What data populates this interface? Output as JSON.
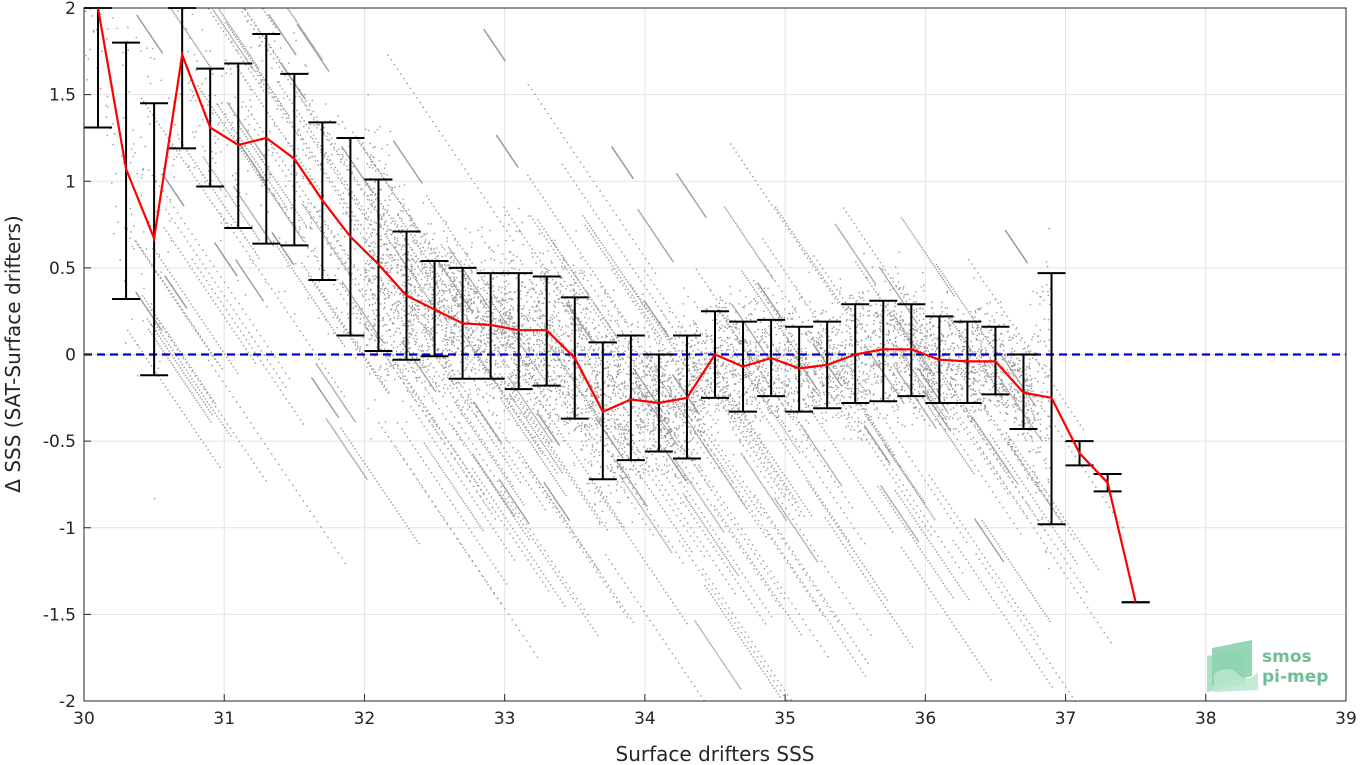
{
  "chart_data": {
    "type": "scatter",
    "title": "",
    "xlabel": "Surface drifters SSS",
    "ylabel": "Δ SSS (SAT-Surface drifters)",
    "xlim": [
      30,
      39
    ],
    "ylim": [
      -2,
      2
    ],
    "x_ticks": [
      30,
      31,
      32,
      33,
      34,
      35,
      36,
      37,
      38,
      39
    ],
    "y_ticks": [
      -2,
      -1.5,
      -1,
      -0.5,
      0,
      0.5,
      1,
      1.5,
      2
    ],
    "x_tick_labels": [
      "30",
      "31",
      "32",
      "33",
      "34",
      "35",
      "36",
      "37",
      "38",
      "39"
    ],
    "y_tick_labels": [
      "-2",
      "-1.5",
      "-1",
      "-0.5",
      "0",
      "0.5",
      "1",
      "1.5",
      "2"
    ],
    "grid": true,
    "colors": {
      "scatter": "#999999",
      "mean_line": "#ff0000",
      "error_bars": "#000000",
      "zero_line": "#0000cc"
    },
    "zero_reference": 0,
    "binned_stats": {
      "x": [
        30.1,
        30.3,
        30.5,
        30.7,
        30.9,
        31.1,
        31.3,
        31.5,
        31.7,
        31.9,
        32.1,
        32.3,
        32.5,
        32.7,
        32.9,
        33.1,
        33.3,
        33.5,
        33.7,
        33.9,
        34.1,
        34.3,
        34.5,
        34.7,
        34.9,
        35.1,
        35.3,
        35.5,
        35.7,
        35.9,
        36.1,
        36.3,
        36.5,
        36.7,
        36.9,
        37.1,
        37.3,
        37.5
      ],
      "mean": [
        2.02,
        1.07,
        0.67,
        1.73,
        1.31,
        1.21,
        1.25,
        1.13,
        0.89,
        0.68,
        0.52,
        0.34,
        0.26,
        0.18,
        0.17,
        0.14,
        0.14,
        -0.02,
        -0.33,
        -0.26,
        -0.28,
        -0.25,
        0.0,
        -0.07,
        -0.02,
        -0.08,
        -0.06,
        0.0,
        0.03,
        0.03,
        -0.03,
        -0.04,
        -0.04,
        -0.22,
        -0.25,
        -0.57,
        -0.74,
        -1.43
      ],
      "upper": [
        2.02,
        1.8,
        1.45,
        2.02,
        1.65,
        1.68,
        1.85,
        1.62,
        1.34,
        1.25,
        1.01,
        0.71,
        0.54,
        0.5,
        0.47,
        0.47,
        0.45,
        0.33,
        0.07,
        0.11,
        0.0,
        0.11,
        0.25,
        0.19,
        0.2,
        0.16,
        0.19,
        0.29,
        0.31,
        0.29,
        0.22,
        0.19,
        0.16,
        0.0,
        0.47,
        -0.5,
        -0.69,
        -1.43
      ],
      "lower": [
        1.31,
        0.32,
        -0.12,
        1.19,
        0.97,
        0.73,
        0.64,
        0.63,
        0.43,
        0.11,
        0.02,
        -0.03,
        -0.01,
        -0.14,
        -0.14,
        -0.2,
        -0.18,
        -0.37,
        -0.72,
        -0.61,
        -0.56,
        -0.6,
        -0.25,
        -0.33,
        -0.24,
        -0.33,
        -0.31,
        -0.28,
        -0.27,
        -0.24,
        -0.28,
        -0.28,
        -0.23,
        -0.43,
        -0.98,
        -0.64,
        -0.79,
        -1.43
      ]
    }
  },
  "logo": {
    "line1": "smos",
    "line2": "pi-mep"
  }
}
